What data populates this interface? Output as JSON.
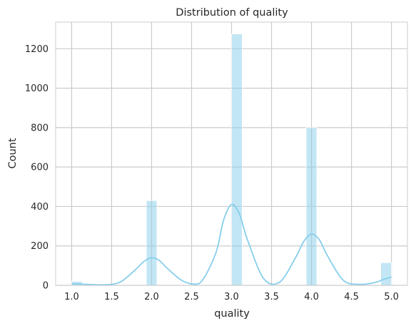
{
  "chart_data": {
    "type": "bar",
    "title": "Distribution of quality",
    "xlabel": "quality",
    "ylabel": "Count",
    "xlim": [
      0.8,
      5.2
    ],
    "ylim": [
      0,
      1335
    ],
    "grid": true,
    "xticks": [
      1.0,
      1.5,
      2.0,
      2.5,
      3.0,
      3.5,
      4.0,
      4.5,
      5.0
    ],
    "xtick_labels": [
      "1.0",
      "1.5",
      "2.0",
      "2.5",
      "3.0",
      "3.5",
      "4.0",
      "4.5",
      "5.0"
    ],
    "yticks": [
      0,
      200,
      400,
      600,
      800,
      1000,
      1200
    ],
    "ytick_labels": [
      "0",
      "200",
      "400",
      "600",
      "800",
      "1000",
      "1200"
    ],
    "bin_width": 0.1333,
    "bars": [
      {
        "x0": 1.0,
        "count": 20
      },
      {
        "x0": 1.9333,
        "count": 430
      },
      {
        "x0": 3.0,
        "count": 1275
      },
      {
        "x0": 3.9333,
        "count": 800
      },
      {
        "x0": 4.8667,
        "count": 115
      }
    ],
    "kde": {
      "x": [
        1.0,
        1.2,
        1.4,
        1.6,
        1.8,
        1.9,
        2.0,
        2.1,
        2.2,
        2.4,
        2.6,
        2.8,
        2.9,
        3.0,
        3.1,
        3.2,
        3.4,
        3.6,
        3.8,
        3.9,
        4.0,
        4.1,
        4.2,
        4.4,
        4.6,
        4.8,
        4.9,
        5.0
      ],
      "y": [
        8,
        5,
        3,
        15,
        80,
        120,
        140,
        125,
        85,
        20,
        10,
        160,
        330,
        410,
        360,
        230,
        35,
        15,
        140,
        220,
        260,
        230,
        150,
        25,
        5,
        15,
        30,
        42
      ]
    },
    "colors": {
      "bar_fill": "#87ceeb",
      "bar_opacity": 0.5,
      "kde_line": "#87ceeb",
      "grid": "#cccccc",
      "text": "#262626"
    }
  }
}
